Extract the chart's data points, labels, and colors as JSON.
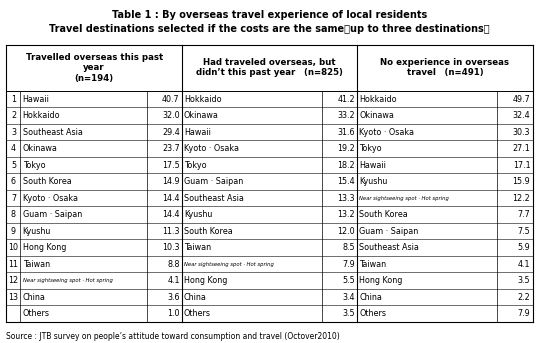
{
  "title1": "Table 1 : By overseas travel experience of local residents",
  "title2": "Travel destinations selected if the costs are the same（up to three destinations）",
  "source": "Source : JTB survey on people’s attitude toward consumption and travel (Octover2010)",
  "col1_header": "Travelled overseas this past\nyear\n(n=194)",
  "col2_header": "Had traveled overseas, but\ndidn’t this past year (n=825)",
  "col3_header": "No experience in overseas\ntravel (n=491)",
  "col1_data": [
    [
      "1",
      "Hawaii",
      "40.7"
    ],
    [
      "2",
      "Hokkaido",
      "32.0"
    ],
    [
      "3",
      "Southeast Asia",
      "29.4"
    ],
    [
      "4",
      "Okinawa",
      "23.7"
    ],
    [
      "5",
      "Tokyo",
      "17.5"
    ],
    [
      "6",
      "South Korea",
      "14.9"
    ],
    [
      "7",
      "Kyoto · Osaka",
      "14.4"
    ],
    [
      "8",
      "Guam · Saipan",
      "14.4"
    ],
    [
      "9",
      "Kyushu",
      "11.3"
    ],
    [
      "10",
      "Hong Kong",
      "10.3"
    ],
    [
      "11",
      "Taiwan",
      "8.8"
    ],
    [
      "12",
      "Near sightseeing spot · Hot spring",
      "4.1"
    ],
    [
      "13",
      "China",
      "3.6"
    ],
    [
      "",
      "Others",
      "1.0"
    ]
  ],
  "col2_data": [
    [
      "Hokkaido",
      "41.2"
    ],
    [
      "Okinawa",
      "33.2"
    ],
    [
      "Hawaii",
      "31.6"
    ],
    [
      "Kyoto · Osaka",
      "19.2"
    ],
    [
      "Tokyo",
      "18.2"
    ],
    [
      "Guam · Saipan",
      "15.4"
    ],
    [
      "Southeast Asia",
      "13.3"
    ],
    [
      "Kyushu",
      "13.2"
    ],
    [
      "South Korea",
      "12.0"
    ],
    [
      "Taiwan",
      "8.5"
    ],
    [
      "Near sightseeing spot · Hot spring",
      "7.9"
    ],
    [
      "Hong Kong",
      "5.5"
    ],
    [
      "China",
      "3.4"
    ],
    [
      "Others",
      "3.5"
    ]
  ],
  "col3_data": [
    [
      "Hokkaido",
      "49.7"
    ],
    [
      "Okinawa",
      "32.4"
    ],
    [
      "Kyoto · Osaka",
      "30.3"
    ],
    [
      "Tokyo",
      "27.1"
    ],
    [
      "Hawaii",
      "17.1"
    ],
    [
      "Kyushu",
      "15.9"
    ],
    [
      "Near sightseeing spot · Hot spring",
      "12.2"
    ],
    [
      "South Korea",
      "7.7"
    ],
    [
      "Guam · Saipan",
      "7.5"
    ],
    [
      "Southeast Asia",
      "5.9"
    ],
    [
      "Taiwan",
      "4.1"
    ],
    [
      "Hong Kong",
      "3.5"
    ],
    [
      "China",
      "2.2"
    ],
    [
      "Others",
      "7.9"
    ]
  ],
  "bg_color": "#ffffff",
  "text_color": "#000000",
  "title_fontsize": 7.0,
  "header_fontsize": 6.2,
  "cell_fontsize": 5.8,
  "small_fontsize": 3.8,
  "source_fontsize": 5.5
}
